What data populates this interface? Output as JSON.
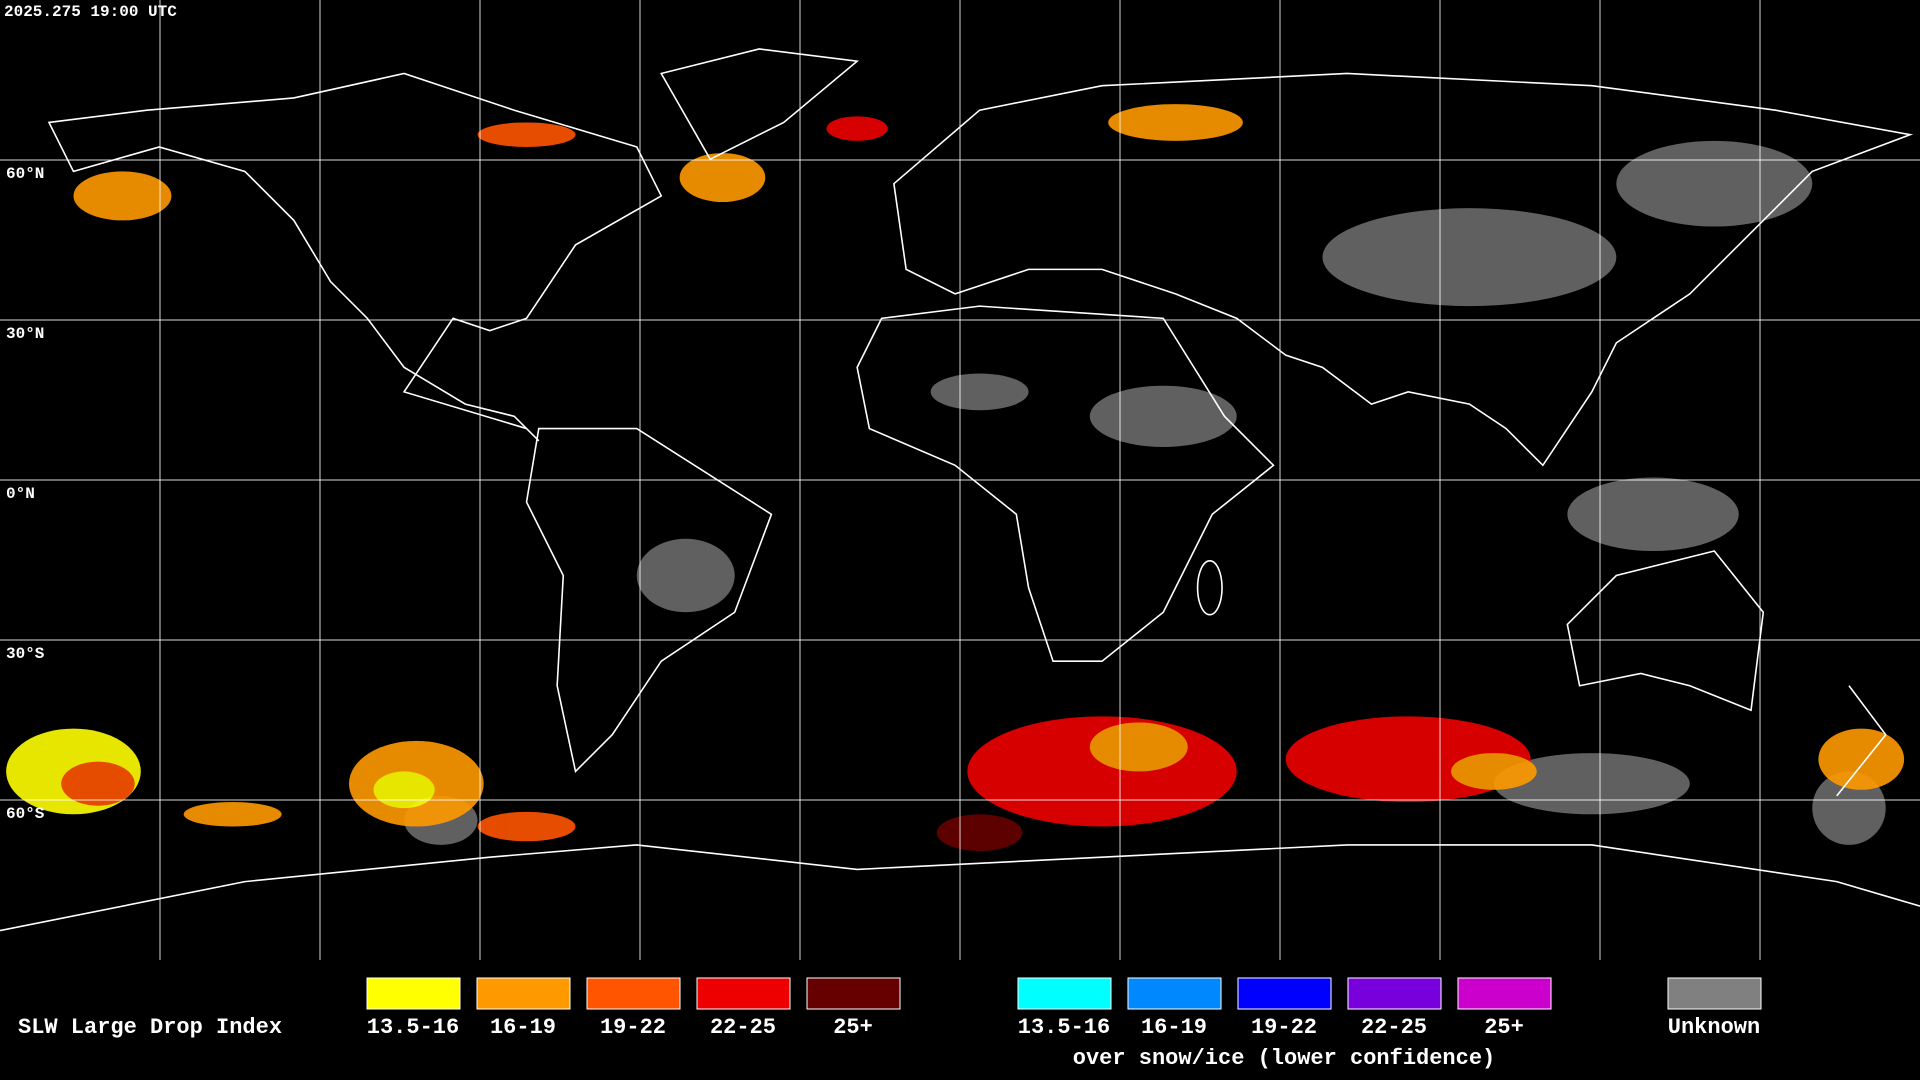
{
  "timestamp": "2025.275 19:00 UTC",
  "latitude_labels": [
    "60°N",
    "30°N",
    "0°N",
    "30°S",
    "60°S"
  ],
  "legend": {
    "title": "SLW Large Drop Index",
    "entries": [
      {
        "label": "13.5-16",
        "color": "#ffff00"
      },
      {
        "label": "16-19",
        "color": "#ff9900"
      },
      {
        "label": "19-22",
        "color": "#ff5500"
      },
      {
        "label": "22-25",
        "color": "#ee0000"
      },
      {
        "label": "25+",
        "color": "#660000"
      }
    ],
    "snow_ice_entries": [
      {
        "label": "13.5-16",
        "color": "#00ffff"
      },
      {
        "label": "16-19",
        "color": "#0088ff"
      },
      {
        "label": "19-22",
        "color": "#0000ff"
      },
      {
        "label": "22-25",
        "color": "#7700dd"
      },
      {
        "label": "25+",
        "color": "#cc00cc"
      }
    ],
    "snow_ice_caption": "over snow/ice (lower confidence)",
    "unknown": {
      "label": "Unknown",
      "color": "#808080"
    }
  }
}
